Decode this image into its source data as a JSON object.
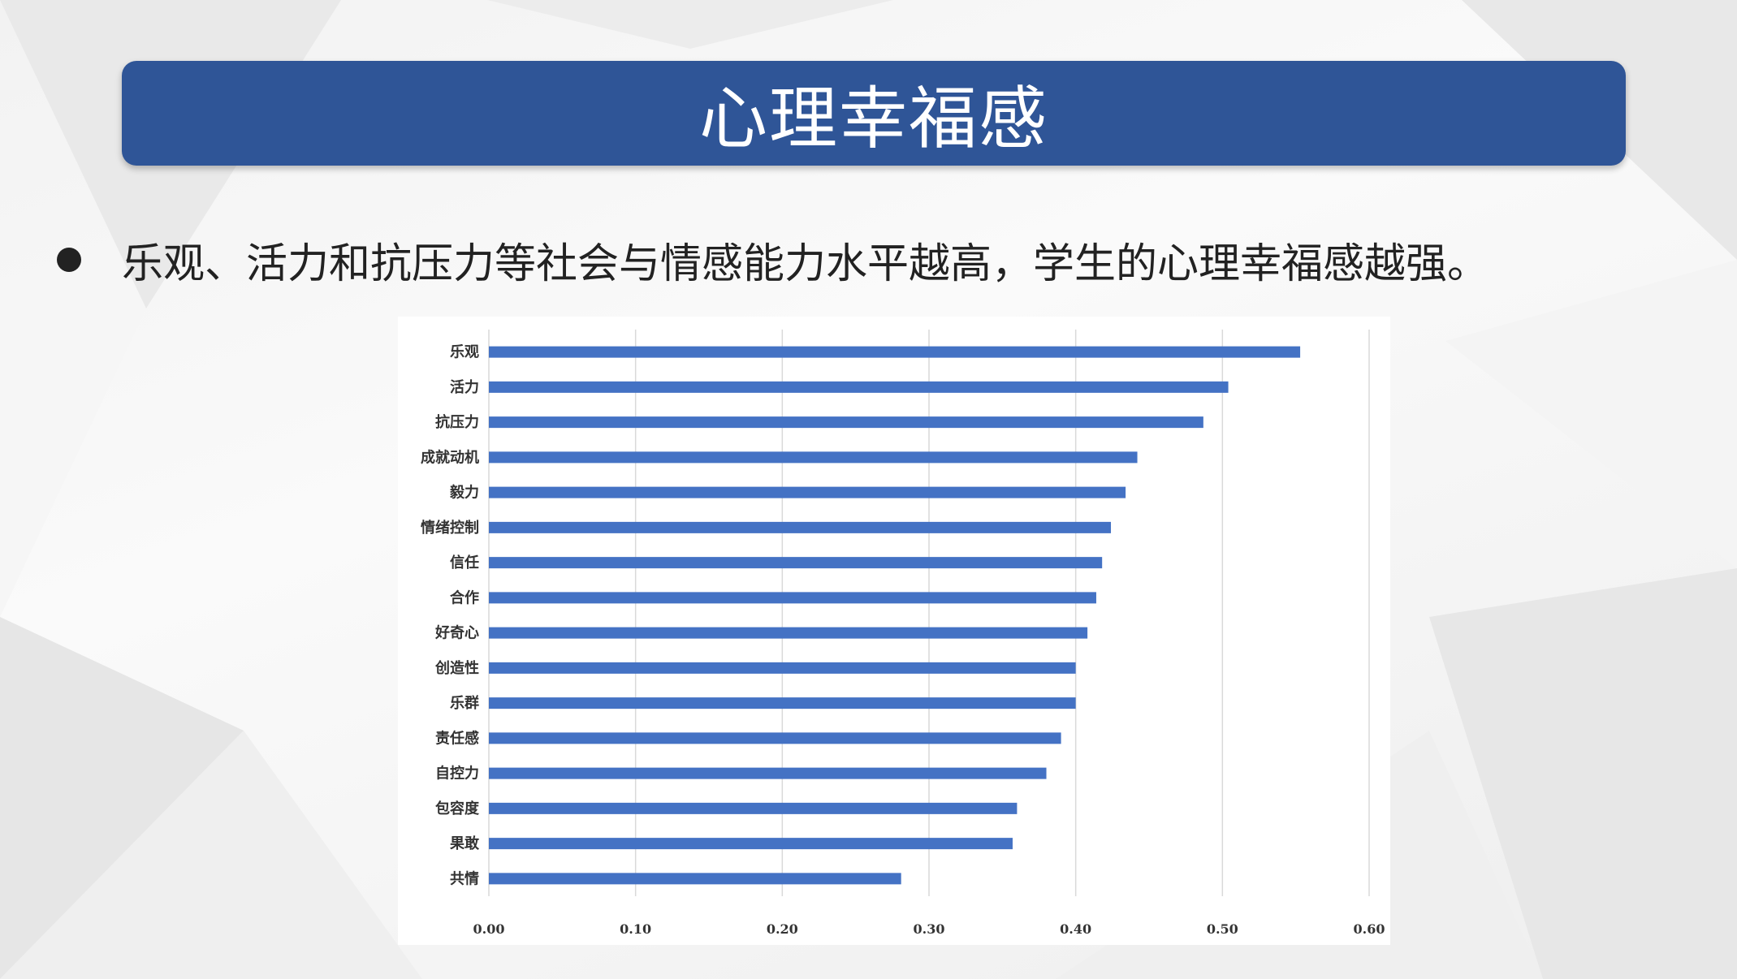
{
  "slide": {
    "title": "心理幸福感",
    "bullet": "乐观、活力和抗压力等社会与情感能力水平越高，学生的心理幸福感越强。",
    "accent_color": "#2f5597"
  },
  "chart_data": {
    "type": "bar",
    "orientation": "horizontal",
    "categories": [
      "乐观",
      "活力",
      "抗压力",
      "成就动机",
      "毅力",
      "情绪控制",
      "信任",
      "合作",
      "好奇心",
      "创造性",
      "乐群",
      "责任感",
      "自控力",
      "包容度",
      "果敢",
      "共情"
    ],
    "values": [
      0.553,
      0.504,
      0.487,
      0.442,
      0.434,
      0.424,
      0.418,
      0.414,
      0.408,
      0.4,
      0.4,
      0.39,
      0.38,
      0.36,
      0.357,
      0.281
    ],
    "xlim": [
      0,
      0.6
    ],
    "xticks": [
      "0.00",
      "0.10",
      "0.20",
      "0.30",
      "0.40",
      "0.50",
      "0.60"
    ],
    "bar_color": "#4472c4",
    "grid": "vertical",
    "title": "",
    "xlabel": "",
    "ylabel": ""
  }
}
